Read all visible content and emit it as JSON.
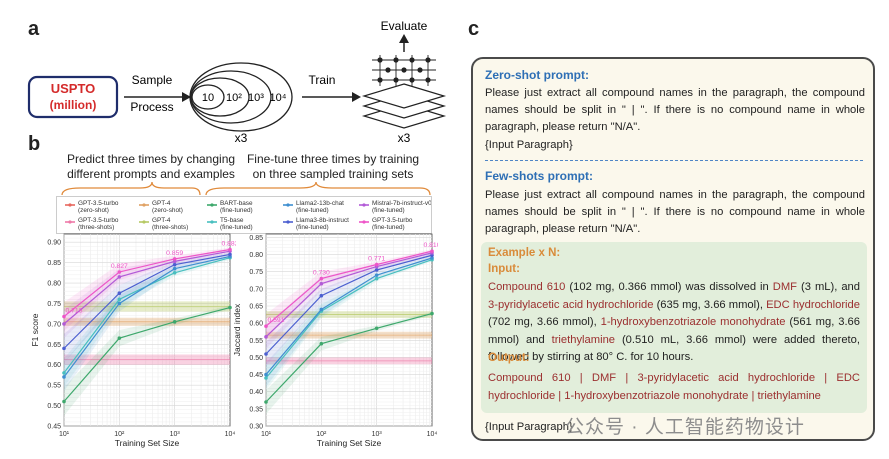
{
  "panels": {
    "a": "a",
    "b": "b",
    "c": "c"
  },
  "panel_a": {
    "uspto": "USPTO",
    "million": "(million)",
    "sample": "Sample",
    "process": "Process",
    "ellipses": [
      "10",
      "10²",
      "10³",
      "10⁴"
    ],
    "x3_left": "x3",
    "train": "Train",
    "evaluate": "Evaluate",
    "x3_right": "x3"
  },
  "panel_b": {
    "header_left_1": "Predict three times by changing",
    "header_left_2": "different prompts and examples",
    "header_right_1": "Fine-tune three times by training",
    "header_right_2": "on three sampled training sets",
    "legend": [
      {
        "line1": "GPT-3.5-turbo",
        "line2": "(zero-shot)",
        "color": "#e8685f"
      },
      {
        "line1": "GPT-4",
        "line2": "(zero-shot)",
        "color": "#e0a264"
      },
      {
        "line1": "BART-base",
        "line2": "(fine-tuned)",
        "color": "#3ea86c"
      },
      {
        "line1": "Llama2-13b-chat",
        "line2": "(fine-tuned)",
        "color": "#3f8fd0"
      },
      {
        "line1": "Mistral-7b-instruct-v0.2",
        "line2": "(fine-tuned)",
        "color": "#b25ad7"
      },
      {
        "line1": "GPT-3.5-turbo",
        "line2": "(three-shots)",
        "color": "#ee7aa8"
      },
      {
        "line1": "GPT-4",
        "line2": "(three-shots)",
        "color": "#b6c964"
      },
      {
        "line1": "T5-base",
        "line2": "(fine-tuned)",
        "color": "#48bfbf"
      },
      {
        "line1": "Llama3-8b-instruct",
        "line2": "(fine-tuned)",
        "color": "#4c5fd0"
      },
      {
        "line1": "GPT-3.5-turbo",
        "line2": "(fine-tuned)",
        "color": "#ee55c8"
      }
    ]
  },
  "chart_data": [
    {
      "type": "line",
      "xlabel": "Training Set Size",
      "ylabel": "F1 score",
      "x": [
        10,
        100,
        1000,
        10000
      ],
      "xscale": "log",
      "xticks": [
        "10¹",
        "10²",
        "10³",
        "10⁴"
      ],
      "ylim": [
        0.45,
        0.92
      ],
      "yticks": [
        "0.45",
        "0.50",
        "0.55",
        "0.60",
        "0.65",
        "0.70",
        "0.75",
        "0.80",
        "0.85",
        "0.90"
      ],
      "grid": true,
      "bands": [
        {
          "name": "GPT-3.5-turbo (zero-shot)",
          "low": 0.6,
          "high": 0.625,
          "color": "#ee7aa8"
        },
        {
          "name": "GPT-4 (zero-shot)",
          "low": 0.695,
          "high": 0.715,
          "color": "#e0a264"
        },
        {
          "name": "GPT-4 (three-shots)",
          "low": 0.73,
          "high": 0.755,
          "color": "#b6c964"
        }
      ],
      "series": [
        {
          "name": "BART-base (fine-tuned)",
          "values": [
            0.51,
            0.665,
            0.705,
            0.74
          ],
          "color": "#3ea86c"
        },
        {
          "name": "T5-base (fine-tuned)",
          "values": [
            0.58,
            0.76,
            0.825,
            0.862
          ],
          "color": "#48bfbf"
        },
        {
          "name": "Llama2-13b-chat (fine-tuned)",
          "values": [
            0.57,
            0.75,
            0.835,
            0.865
          ],
          "color": "#3f8fd0"
        },
        {
          "name": "Llama3-8b-instruct (fine-tuned)",
          "values": [
            0.64,
            0.775,
            0.845,
            0.87
          ],
          "color": "#4c5fd0"
        },
        {
          "name": "Mistral-7b-instruct-v0.2 (fine-tuned)",
          "values": [
            0.7,
            0.815,
            0.853,
            0.878
          ],
          "color": "#b25ad7"
        },
        {
          "name": "GPT-3.5-turbo (fine-tuned)",
          "values": [
            0.718,
            0.827,
            0.859,
            0.882
          ],
          "color": "#ee55c8"
        }
      ],
      "data_labels": [
        "0.718",
        "0.827",
        "0.859",
        "0.882"
      ]
    },
    {
      "type": "line",
      "xlabel": "Training Set Size",
      "ylabel": "Jaccard index",
      "x": [
        10,
        100,
        1000,
        10000
      ],
      "xscale": "log",
      "xticks": [
        "10¹",
        "10²",
        "10³",
        "10⁴"
      ],
      "ylim": [
        0.3,
        0.86
      ],
      "yticks": [
        "0.30",
        "0.35",
        "0.40",
        "0.45",
        "0.50",
        "0.55",
        "0.60",
        "0.65",
        "0.70",
        "0.75",
        "0.80",
        "0.85"
      ],
      "grid": true,
      "bands": [
        {
          "name": "GPT-3.5-turbo (zero-shot)",
          "low": 0.48,
          "high": 0.5,
          "color": "#ee7aa8"
        },
        {
          "name": "GPT-4 (zero-shot)",
          "low": 0.555,
          "high": 0.575,
          "color": "#e0a264"
        },
        {
          "name": "GPT-4 (three-shots)",
          "low": 0.615,
          "high": 0.635,
          "color": "#b6c964"
        }
      ],
      "series": [
        {
          "name": "BART-base (fine-tuned)",
          "values": [
            0.37,
            0.54,
            0.585,
            0.628
          ],
          "color": "#3ea86c"
        },
        {
          "name": "T5-base (fine-tuned)",
          "values": [
            0.44,
            0.635,
            0.73,
            0.785
          ],
          "color": "#48bfbf"
        },
        {
          "name": "Llama2-13b-chat (fine-tuned)",
          "values": [
            0.45,
            0.64,
            0.74,
            0.79
          ],
          "color": "#3f8fd0"
        },
        {
          "name": "Llama3-8b-instruct (fine-tuned)",
          "values": [
            0.51,
            0.68,
            0.755,
            0.798
          ],
          "color": "#4c5fd0"
        },
        {
          "name": "Mistral-7b-instruct-v0.2 (fine-tuned)",
          "values": [
            0.56,
            0.715,
            0.765,
            0.805
          ],
          "color": "#b25ad7"
        },
        {
          "name": "GPT-3.5-turbo (fine-tuned)",
          "values": [
            0.591,
            0.73,
            0.771,
            0.81
          ],
          "color": "#ee55c8"
        }
      ],
      "data_labels": [
        "0.591",
        "0.730",
        "0.771",
        "0.810"
      ]
    }
  ],
  "panel_c": {
    "zero_title": "Zero-shot prompt:",
    "zero_text": "Please just extract all compound names in the paragraph, the compound names should be split in \" | \". If there is no compound name in whole paragraph, please return \"N/A\".",
    "input_paragraph_1": "{Input Paragraph}",
    "few_title": "Few-shots prompt:",
    "few_text": "Please just extract all compound names in the paragraph, the compound names should be split in \" | \". If there is no compound name in whole paragraph, please return \"N/A\".",
    "example_title": "Example x N:",
    "input_label": "Input:",
    "input_parts": [
      {
        "t": "Compound 610",
        "hl": true
      },
      {
        "t": " (102 mg, 0.366 mmol) was dissolved in ",
        "hl": false
      },
      {
        "t": "DMF",
        "hl": true
      },
      {
        "t": " (3 mL), and ",
        "hl": false
      },
      {
        "t": "3-pyridylacetic acid hydrochloride",
        "hl": true
      },
      {
        "t": " (635 mg, 3.66 mmol), ",
        "hl": false
      },
      {
        "t": "EDC hydrochloride",
        "hl": true
      },
      {
        "t": " (702 mg, 3.66 mmol), ",
        "hl": false
      },
      {
        "t": "1-hydroxybenzotriazole monohydrate",
        "hl": true
      },
      {
        "t": " (561 mg, 3.66 mmol) and ",
        "hl": false
      },
      {
        "t": "triethylamine",
        "hl": true
      },
      {
        "t": " (0.510 mL, 3.66 mmol) were added thereto, followed by stirring at 80° C. for 10 hours.",
        "hl": false
      }
    ],
    "output_label": "Output:",
    "output_text": "Compound 610 | DMF | 3-pyridylacetic acid hydrochloride | EDC hydrochloride | 1-hydroxybenzotriazole monohydrate | triethylamine",
    "input_paragraph_2": "{Input Paragraph}"
  },
  "watermark": "公众号 · 人工智能药物设计",
  "colors": {
    "uspto_red": "#d42a2a",
    "uspto_border": "#1f2d6b",
    "prompt_blue": "#2e6fb5",
    "example_orange": "#d98b3a",
    "compound_red": "#9b2f2f"
  }
}
